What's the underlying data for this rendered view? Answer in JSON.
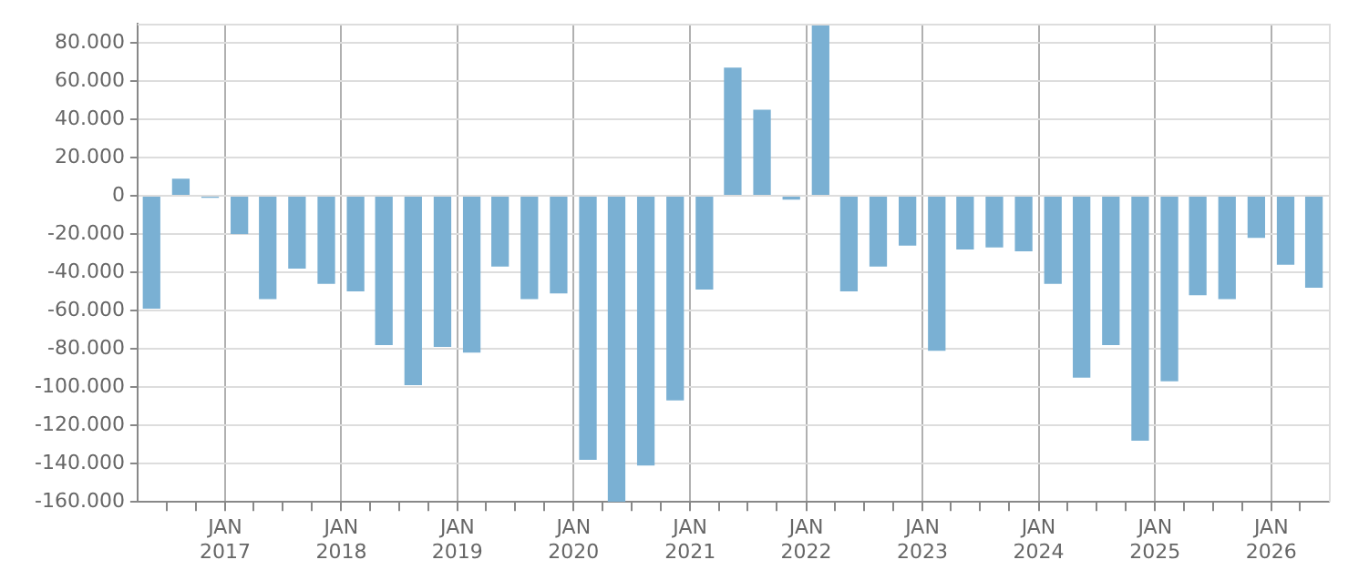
{
  "chart_data": {
    "type": "bar",
    "color": "#7ab0d3",
    "x": [
      "2016-05-15",
      "2016-08-15",
      "2016-11-15",
      "2017-02-15",
      "2017-05-15",
      "2017-08-15",
      "2017-11-15",
      "2018-02-15",
      "2018-05-15",
      "2018-08-15",
      "2018-11-15",
      "2019-02-15",
      "2019-05-15",
      "2019-08-15",
      "2019-11-15",
      "2020-02-15",
      "2020-05-15",
      "2020-08-15",
      "2020-11-15",
      "2021-02-15",
      "2021-05-15",
      "2021-08-15",
      "2021-11-15",
      "2022-02-15",
      "2022-05-15",
      "2022-08-15",
      "2022-11-15",
      "2023-02-15",
      "2023-05-15",
      "2023-08-15",
      "2023-11-15",
      "2024-02-15",
      "2024-05-15",
      "2024-08-15",
      "2024-11-15",
      "2025-02-15",
      "2025-05-15",
      "2025-08-15",
      "2025-11-15",
      "2026-02-15",
      "2026-05-15"
    ],
    "values": [
      -59000,
      9000,
      -1000,
      -20000,
      -54000,
      -38000,
      -46000,
      -50000,
      -78000,
      -99000,
      -79000,
      -82000,
      -37000,
      -54000,
      -51000,
      -138000,
      -160000,
      -141000,
      -107000,
      -49000,
      67000,
      45000,
      -2000,
      89000,
      -50000,
      -37000,
      -26000,
      -81000,
      -28000,
      -27000,
      -29000,
      -46000,
      -95000,
      -78000,
      -128000,
      -97000,
      -52000,
      -54000,
      -22000,
      -36000,
      -48000
    ],
    "xlim": [
      "2016-04-01",
      "2026-07-01"
    ],
    "xticks": [
      {
        "value": "2016-07-01",
        "label": null
      },
      {
        "value": "2016-10-01",
        "label": null
      },
      {
        "value": "2017-01-01",
        "label": "JAN 2017"
      },
      {
        "value": "2017-04-01",
        "label": null
      },
      {
        "value": "2017-07-01",
        "label": null
      },
      {
        "value": "2017-10-01",
        "label": null
      },
      {
        "value": "2018-01-01",
        "label": "JAN 2018"
      },
      {
        "value": "2018-04-01",
        "label": null
      },
      {
        "value": "2018-07-01",
        "label": null
      },
      {
        "value": "2018-10-01",
        "label": null
      },
      {
        "value": "2019-01-01",
        "label": "JAN 2019"
      },
      {
        "value": "2019-04-01",
        "label": null
      },
      {
        "value": "2019-07-01",
        "label": null
      },
      {
        "value": "2019-10-01",
        "label": null
      },
      {
        "value": "2020-01-01",
        "label": "JAN 2020"
      },
      {
        "value": "2020-04-01",
        "label": null
      },
      {
        "value": "2020-07-01",
        "label": null
      },
      {
        "value": "2020-10-01",
        "label": null
      },
      {
        "value": "2021-01-01",
        "label": "JAN 2021"
      },
      {
        "value": "2021-04-01",
        "label": null
      },
      {
        "value": "2021-07-01",
        "label": null
      },
      {
        "value": "2021-10-01",
        "label": null
      },
      {
        "value": "2022-01-01",
        "label": "JAN 2022"
      },
      {
        "value": "2022-04-01",
        "label": null
      },
      {
        "value": "2022-07-01",
        "label": null
      },
      {
        "value": "2022-10-01",
        "label": null
      },
      {
        "value": "2023-01-01",
        "label": "JAN 2023"
      },
      {
        "value": "2023-04-01",
        "label": null
      },
      {
        "value": "2023-07-01",
        "label": null
      },
      {
        "value": "2023-10-01",
        "label": null
      },
      {
        "value": "2024-01-01",
        "label": "JAN 2024"
      },
      {
        "value": "2024-04-01",
        "label": null
      },
      {
        "value": "2024-07-01",
        "label": null
      },
      {
        "value": "2024-10-01",
        "label": null
      },
      {
        "value": "2025-01-01",
        "label": "JAN 2025"
      },
      {
        "value": "2025-04-01",
        "label": null
      },
      {
        "value": "2025-07-01",
        "label": null
      },
      {
        "value": "2025-10-01",
        "label": null
      },
      {
        "value": "2026-01-01",
        "label": "JAN 2026"
      },
      {
        "value": "2026-04-01",
        "label": null
      }
    ],
    "ylim": [
      -160000,
      90000
    ],
    "yticks": [
      {
        "value": -160000,
        "label": "-160.000"
      },
      {
        "value": -140000,
        "label": "-140.000"
      },
      {
        "value": -120000,
        "label": "-120.000"
      },
      {
        "value": -100000,
        "label": "-100.000"
      },
      {
        "value": -80000,
        "label": "-80.000"
      },
      {
        "value": -60000,
        "label": "-60.000"
      },
      {
        "value": -40000,
        "label": "-40.000"
      },
      {
        "value": -20000,
        "label": "-20.000"
      },
      {
        "value": 0,
        "label": "0"
      },
      {
        "value": 20000,
        "label": "20.000"
      },
      {
        "value": 40000,
        "label": "40.000"
      },
      {
        "value": 60000,
        "label": "60.000"
      },
      {
        "value": 80000,
        "label": "80.000"
      }
    ],
    "grid": true,
    "legend": false
  }
}
